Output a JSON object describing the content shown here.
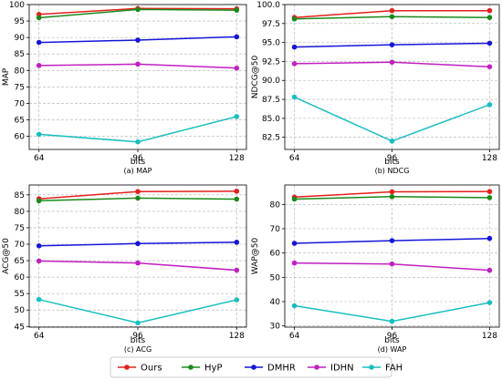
{
  "legend": [
    {
      "name": "Ours",
      "color": "#e3201b"
    },
    {
      "name": "HyP",
      "color": "#1a8a1a"
    },
    {
      "name": "DMHR",
      "color": "#1515d9"
    },
    {
      "name": "IDHN",
      "color": "#c11fc1"
    },
    {
      "name": "FAH",
      "color": "#17bfbf"
    }
  ],
  "chart_data": [
    {
      "type": "line",
      "caption": "(a) MAP",
      "xlabel": "bits",
      "ylabel": "MAP",
      "categories": [
        "64",
        "96",
        "128"
      ],
      "ylim": [
        56,
        100
      ],
      "yticks": [
        60,
        65,
        70,
        75,
        80,
        85,
        90,
        95,
        100
      ],
      "ytick_labels": [
        "60",
        "65",
        "70",
        "75",
        "80",
        "85",
        "90",
        "95",
        "100"
      ],
      "grid": true,
      "series": [
        {
          "name": "Ours",
          "color": "#e3201b",
          "values": [
            97.0,
            98.8,
            98.7
          ]
        },
        {
          "name": "HyP",
          "color": "#1a8a1a",
          "values": [
            96.0,
            98.5,
            98.3
          ]
        },
        {
          "name": "DMHR",
          "color": "#1515d9",
          "values": [
            88.5,
            89.2,
            90.2
          ]
        },
        {
          "name": "IDHN",
          "color": "#c11fc1",
          "values": [
            81.5,
            81.9,
            80.7
          ]
        },
        {
          "name": "FAH",
          "color": "#17bfbf",
          "values": [
            60.6,
            58.3,
            66.0
          ]
        }
      ]
    },
    {
      "type": "line",
      "caption": "(b) NDCG",
      "xlabel": "bits",
      "ylabel": "NDCG@50",
      "categories": [
        "64",
        "96",
        "128"
      ],
      "ylim": [
        80.9,
        100.0
      ],
      "yticks": [
        82.5,
        85.0,
        87.5,
        90.0,
        92.5,
        95.0,
        97.5,
        100.0
      ],
      "ytick_labels": [
        "82.5",
        "85.0",
        "87.5",
        "90.0",
        "92.5",
        "95.0",
        "97.5",
        "100.0"
      ],
      "grid": true,
      "series": [
        {
          "name": "Ours",
          "color": "#e3201b",
          "values": [
            98.3,
            99.2,
            99.2
          ]
        },
        {
          "name": "HyP",
          "color": "#1a8a1a",
          "values": [
            98.1,
            98.4,
            98.3
          ]
        },
        {
          "name": "DMHR",
          "color": "#1515d9",
          "values": [
            94.4,
            94.7,
            94.9
          ]
        },
        {
          "name": "IDHN",
          "color": "#c11fc1",
          "values": [
            92.2,
            92.4,
            91.8
          ]
        },
        {
          "name": "FAH",
          "color": "#17bfbf",
          "values": [
            87.8,
            82.0,
            86.8
          ]
        }
      ]
    },
    {
      "type": "line",
      "caption": "(c) ACG",
      "xlabel": "bits",
      "ylabel": "ACG@50",
      "categories": [
        "64",
        "96",
        "128"
      ],
      "ylim": [
        44.8,
        88.0
      ],
      "yticks": [
        45,
        50,
        55,
        60,
        65,
        70,
        75,
        80,
        85
      ],
      "ytick_labels": [
        "45",
        "50",
        "55",
        "60",
        "65",
        "70",
        "75",
        "80",
        "85"
      ],
      "grid": true,
      "series": [
        {
          "name": "Ours",
          "color": "#e3201b",
          "values": [
            83.8,
            86.0,
            86.1
          ]
        },
        {
          "name": "HyP",
          "color": "#1a8a1a",
          "values": [
            83.2,
            84.0,
            83.7
          ]
        },
        {
          "name": "DMHR",
          "color": "#1515d9",
          "values": [
            69.5,
            70.2,
            70.6
          ]
        },
        {
          "name": "IDHN",
          "color": "#c11fc1",
          "values": [
            64.9,
            64.3,
            62.1
          ]
        },
        {
          "name": "FAH",
          "color": "#17bfbf",
          "values": [
            53.2,
            46.1,
            53.1
          ]
        }
      ]
    },
    {
      "type": "line",
      "caption": "(d) WAP",
      "xlabel": "bits",
      "ylabel": "WAP@50",
      "categories": [
        "64",
        "96",
        "128"
      ],
      "ylim": [
        29.5,
        88.0
      ],
      "yticks": [
        30,
        40,
        50,
        60,
        70,
        80
      ],
      "ytick_labels": [
        "30",
        "40",
        "50",
        "60",
        "70",
        "80"
      ],
      "grid": true,
      "series": [
        {
          "name": "Ours",
          "color": "#e3201b",
          "values": [
            83.0,
            85.2,
            85.3
          ]
        },
        {
          "name": "HyP",
          "color": "#1a8a1a",
          "values": [
            82.2,
            83.2,
            82.8
          ]
        },
        {
          "name": "DMHR",
          "color": "#1515d9",
          "values": [
            64.0,
            65.1,
            66.0
          ]
        },
        {
          "name": "IDHN",
          "color": "#c11fc1",
          "values": [
            55.9,
            55.5,
            52.9
          ]
        },
        {
          "name": "FAH",
          "color": "#17bfbf",
          "values": [
            38.3,
            31.9,
            39.6
          ]
        }
      ]
    }
  ]
}
